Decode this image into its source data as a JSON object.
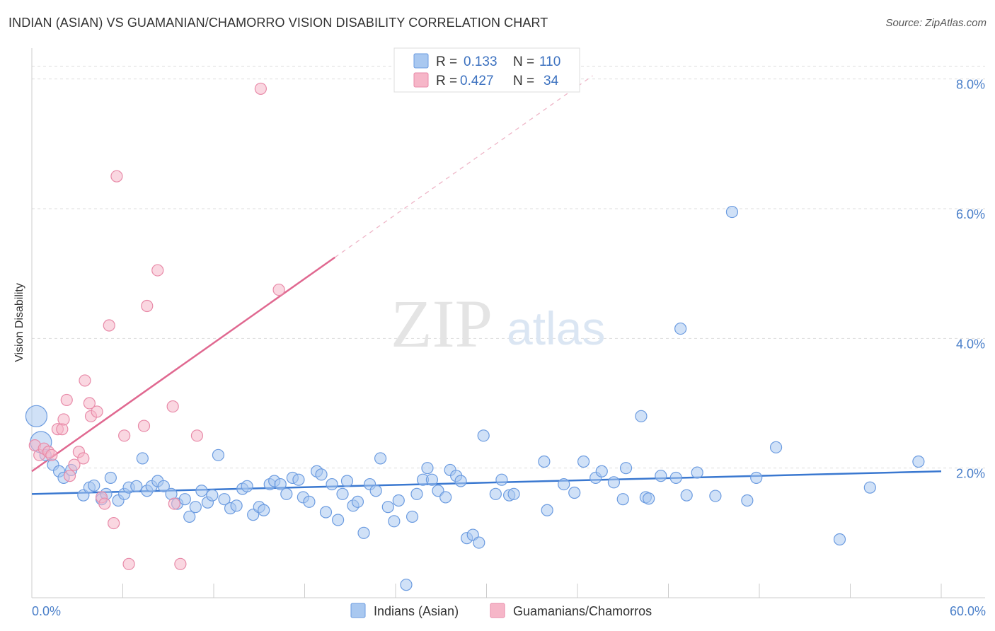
{
  "title": "INDIAN (ASIAN) VS GUAMANIAN/CHAMORRO VISION DISABILITY CORRELATION CHART",
  "source": "Source: ZipAtlas.com",
  "watermark": {
    "zip": "ZIP",
    "atlas": "atlas"
  },
  "colors": {
    "blue_fill": "#a9c8f0",
    "blue_stroke": "#6b9be0",
    "blue_line": "#3a78d0",
    "pink_fill": "#f6b6c8",
    "pink_stroke": "#e88aa8",
    "pink_line": "#e06890",
    "grid": "#dddddd",
    "axis_text": "#4a7fc9"
  },
  "legend": {
    "r_label": "R =",
    "n_label": "N =",
    "rows": [
      {
        "r": "0.133",
        "n": "110",
        "swatch": "blue"
      },
      {
        "r": "0.427",
        "n": "34",
        "swatch": "pink"
      }
    ]
  },
  "bottom_legend": [
    {
      "label": "Indians (Asian)",
      "swatch": "blue"
    },
    {
      "label": "Guamanians/Chamorros",
      "swatch": "pink"
    }
  ],
  "chart_data": {
    "type": "scatter",
    "title": "INDIAN (ASIAN) VS GUAMANIAN/CHAMORRO VISION DISABILITY CORRELATION CHART",
    "xlabel": "",
    "ylabel": "Vision Disability",
    "xlim": [
      0,
      60
    ],
    "ylim": [
      0,
      8.4
    ],
    "x_tick_labels": [
      {
        "value": 0,
        "label": "0.0%"
      },
      {
        "value": 60,
        "label": "60.0%"
      }
    ],
    "y_tick_labels": [
      {
        "value": 2,
        "label": "2.0%"
      },
      {
        "value": 4,
        "label": "4.0%"
      },
      {
        "value": 6,
        "label": "6.0%"
      },
      {
        "value": 8,
        "label": "8.0%"
      }
    ],
    "x_minor_ticks": [
      0,
      6,
      12,
      18,
      24,
      30,
      36,
      42,
      48,
      54,
      60
    ],
    "grid": true,
    "legend_position": "top-center",
    "series": [
      {
        "name": "Indians (Asian)",
        "color": "blue",
        "trend": {
          "x": [
            0,
            60
          ],
          "y": [
            1.6,
            1.95
          ],
          "extended": false
        },
        "points": [
          [
            0.3,
            2.8,
            "L"
          ],
          [
            0.6,
            2.4,
            "L"
          ],
          [
            0.9,
            2.2
          ],
          [
            1.4,
            2.05
          ],
          [
            1.8,
            1.95
          ],
          [
            2.1,
            1.85
          ],
          [
            2.6,
            1.97
          ],
          [
            3.4,
            1.58
          ],
          [
            3.8,
            1.7
          ],
          [
            4.1,
            1.73
          ],
          [
            4.6,
            1.52
          ],
          [
            4.9,
            1.6
          ],
          [
            5.2,
            1.85
          ],
          [
            5.7,
            1.5
          ],
          [
            6.1,
            1.6
          ],
          [
            6.4,
            1.7
          ],
          [
            6.9,
            1.72
          ],
          [
            7.3,
            2.15
          ],
          [
            7.6,
            1.65
          ],
          [
            7.9,
            1.72
          ],
          [
            8.3,
            1.8
          ],
          [
            8.7,
            1.72
          ],
          [
            9.2,
            1.6
          ],
          [
            9.6,
            1.45
          ],
          [
            10.1,
            1.52
          ],
          [
            10.4,
            1.25
          ],
          [
            10.8,
            1.4
          ],
          [
            11.2,
            1.65
          ],
          [
            11.6,
            1.47
          ],
          [
            11.9,
            1.58
          ],
          [
            12.3,
            2.2
          ],
          [
            12.7,
            1.52
          ],
          [
            13.1,
            1.38
          ],
          [
            13.5,
            1.42
          ],
          [
            13.9,
            1.68
          ],
          [
            14.2,
            1.72
          ],
          [
            14.6,
            1.28
          ],
          [
            15.0,
            1.4
          ],
          [
            15.3,
            1.35
          ],
          [
            15.7,
            1.75
          ],
          [
            16.0,
            1.8
          ],
          [
            16.4,
            1.75
          ],
          [
            16.8,
            1.6
          ],
          [
            17.2,
            1.85
          ],
          [
            17.6,
            1.82
          ],
          [
            17.9,
            1.55
          ],
          [
            18.3,
            1.48
          ],
          [
            18.8,
            1.95
          ],
          [
            19.1,
            1.9
          ],
          [
            19.4,
            1.32
          ],
          [
            19.8,
            1.75
          ],
          [
            20.2,
            1.2
          ],
          [
            20.5,
            1.6
          ],
          [
            20.8,
            1.8
          ],
          [
            21.2,
            1.42
          ],
          [
            21.5,
            1.48
          ],
          [
            21.9,
            1.0
          ],
          [
            22.3,
            1.75
          ],
          [
            22.7,
            1.65
          ],
          [
            23.0,
            2.15
          ],
          [
            23.5,
            1.4
          ],
          [
            23.9,
            1.18
          ],
          [
            24.2,
            1.5
          ],
          [
            24.7,
            0.2
          ],
          [
            25.1,
            1.25
          ],
          [
            25.4,
            1.6
          ],
          [
            25.8,
            1.82
          ],
          [
            26.1,
            2.0
          ],
          [
            26.4,
            1.82
          ],
          [
            26.8,
            1.65
          ],
          [
            27.3,
            1.55
          ],
          [
            27.6,
            1.97
          ],
          [
            28.0,
            1.88
          ],
          [
            28.3,
            1.8
          ],
          [
            28.7,
            0.92
          ],
          [
            29.1,
            0.97
          ],
          [
            29.5,
            0.85
          ],
          [
            29.8,
            2.5
          ],
          [
            30.6,
            1.6
          ],
          [
            31.0,
            1.82
          ],
          [
            31.5,
            1.58
          ],
          [
            31.8,
            1.6
          ],
          [
            33.8,
            2.1
          ],
          [
            34.0,
            1.35
          ],
          [
            35.1,
            1.75
          ],
          [
            35.8,
            1.62
          ],
          [
            36.4,
            2.1
          ],
          [
            37.2,
            1.85
          ],
          [
            37.6,
            1.95
          ],
          [
            38.4,
            1.78
          ],
          [
            39.0,
            1.52
          ],
          [
            39.2,
            2.0
          ],
          [
            40.2,
            2.8
          ],
          [
            40.5,
            1.55
          ],
          [
            40.7,
            1.53
          ],
          [
            41.5,
            1.88
          ],
          [
            42.5,
            1.85
          ],
          [
            42.8,
            4.15
          ],
          [
            43.2,
            1.58
          ],
          [
            43.9,
            1.93
          ],
          [
            45.1,
            1.57
          ],
          [
            46.2,
            5.95
          ],
          [
            47.2,
            1.5
          ],
          [
            47.8,
            1.85
          ],
          [
            49.1,
            2.32
          ],
          [
            53.3,
            0.9
          ],
          [
            55.3,
            1.7
          ],
          [
            58.5,
            2.1
          ]
        ]
      },
      {
        "name": "Guamanians/Chamorros",
        "color": "pink",
        "trend": {
          "x": [
            0,
            20
          ],
          "y": [
            1.95,
            5.25
          ],
          "dashed_to": [
            37,
            8.05
          ]
        },
        "points": [
          [
            0.2,
            2.35
          ],
          [
            0.5,
            2.2
          ],
          [
            0.8,
            2.3
          ],
          [
            1.1,
            2.25
          ],
          [
            1.3,
            2.2
          ],
          [
            1.7,
            2.6
          ],
          [
            2.0,
            2.6
          ],
          [
            2.1,
            2.75
          ],
          [
            2.3,
            3.05
          ],
          [
            2.5,
            1.88
          ],
          [
            2.8,
            2.05
          ],
          [
            3.1,
            2.25
          ],
          [
            3.4,
            2.15
          ],
          [
            3.5,
            3.35
          ],
          [
            3.8,
            3.0
          ],
          [
            3.9,
            2.8
          ],
          [
            4.3,
            2.87
          ],
          [
            4.6,
            1.55
          ],
          [
            4.8,
            1.45
          ],
          [
            5.1,
            4.2
          ],
          [
            5.4,
            1.15
          ],
          [
            5.6,
            6.5
          ],
          [
            6.1,
            2.5
          ],
          [
            6.4,
            0.52
          ],
          [
            7.4,
            2.65
          ],
          [
            7.6,
            4.5
          ],
          [
            8.3,
            5.05
          ],
          [
            9.3,
            2.95
          ],
          [
            9.4,
            1.45
          ],
          [
            9.8,
            0.52
          ],
          [
            10.9,
            2.5
          ],
          [
            15.1,
            7.85
          ],
          [
            16.3,
            4.75
          ]
        ]
      }
    ]
  }
}
